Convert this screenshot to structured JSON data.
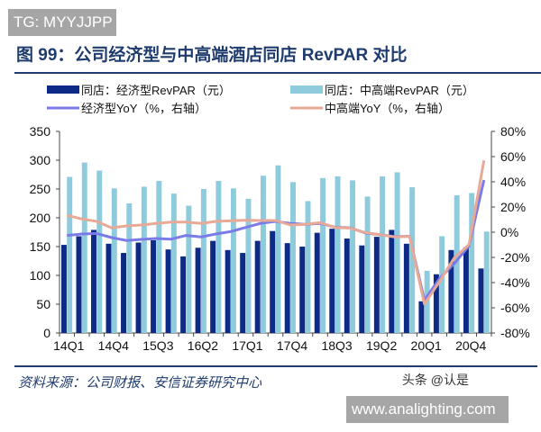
{
  "watermark_top": "TG: MYYJJPP",
  "title": "图 99：公司经济型与中高端酒店同店 RevPAR 对比",
  "source": "资料来源：公司财报、安信证券研究中心",
  "credit": "头条 @认是",
  "watermark_bottom": "www.analighting.com",
  "colors": {
    "economy_bar": "#0d2a86",
    "midhigh_bar": "#8ecbdc",
    "economy_yoy": "#7b7be8",
    "midhigh_yoy": "#e8a996",
    "title": "#1f3c6e"
  },
  "chart_data": {
    "type": "bar+line",
    "categories": [
      "14Q1",
      "14Q2",
      "14Q3",
      "14Q4",
      "15Q1",
      "15Q2",
      "15Q3",
      "15Q4",
      "16Q1",
      "16Q2",
      "16Q3",
      "16Q4",
      "17Q1",
      "17Q2",
      "17Q3",
      "17Q4",
      "18Q1",
      "18Q2",
      "18Q3",
      "18Q4",
      "19Q1",
      "19Q2",
      "19Q3",
      "19Q4",
      "20Q1",
      "20Q2",
      "20Q3",
      "20Q4",
      "21Q1"
    ],
    "x_tick_labels": [
      "14Q1",
      "14Q4",
      "15Q3",
      "16Q2",
      "17Q1",
      "17Q4",
      "18Q3",
      "19Q2",
      "20Q1",
      "20Q4"
    ],
    "y_left": {
      "ylim": [
        0,
        350
      ],
      "ticks": [
        "0",
        "50",
        "100",
        "150",
        "200",
        "250",
        "300",
        "350"
      ]
    },
    "y_right": {
      "ylim": [
        -80,
        80
      ],
      "ticks": [
        "-80%",
        "-60%",
        "-40%",
        "-20%",
        "0%",
        "20%",
        "40%",
        "60%",
        "80%"
      ]
    },
    "legend": {
      "placement": "top"
    },
    "series": [
      {
        "name": "同店：经济型RevPAR（元）",
        "kind": "bar",
        "axis": "left",
        "values": [
          153,
          168,
          179,
          155,
          139,
          157,
          161,
          145,
          133,
          148,
          160,
          144,
          139,
          160,
          177,
          156,
          150,
          174,
          181,
          164,
          152,
          167,
          179,
          155,
          55,
          102,
          144,
          149,
          112
        ]
      },
      {
        "name": "同店：中高端RevPAR（元）",
        "kind": "bar",
        "axis": "left",
        "values": [
          271,
          296,
          282,
          251,
          225,
          254,
          264,
          242,
          221,
          250,
          264,
          251,
          233,
          273,
          291,
          262,
          229,
          269,
          272,
          265,
          237,
          272,
          279,
          253,
          108,
          168,
          239,
          243,
          176
        ]
      },
      {
        "name": "经济型YoY（%，右轴）",
        "kind": "line",
        "axis": "right",
        "values": [
          -2.6,
          -1.4,
          -1,
          -4.3,
          -6.6,
          -5.7,
          -5,
          -5.5,
          -2.6,
          -3.8,
          -1.4,
          0.5,
          3.8,
          7,
          8.6,
          7,
          6.2,
          7,
          4,
          3.5,
          -0.5,
          -2,
          -3.5,
          -3.2,
          -54,
          -37,
          -25,
          -10.7,
          41.4
        ]
      },
      {
        "name": "中高端YoY（%，右轴）",
        "kind": "line",
        "axis": "right",
        "values": [
          13.4,
          10.5,
          8.6,
          3.4,
          5,
          5.7,
          6.9,
          8.1,
          8.1,
          6.9,
          8.6,
          9.1,
          9.5,
          9.3,
          9.3,
          5.7,
          6.2,
          7.6,
          3.8,
          3.3,
          -0.2,
          -1.9,
          -3.8,
          -3.3,
          -57,
          -39.5,
          -20.5,
          -9.8,
          57
        ]
      }
    ]
  }
}
